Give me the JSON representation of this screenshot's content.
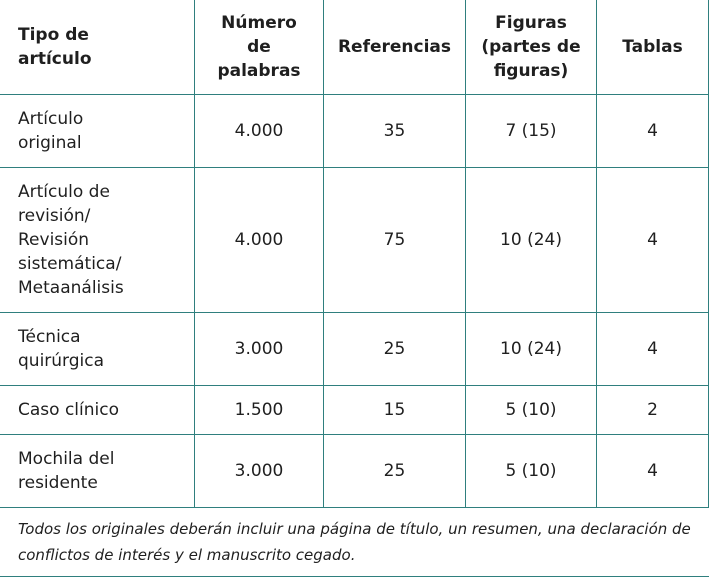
{
  "table": {
    "headers": [
      "Tipo de\nartículo",
      "Número\nde\npalabras",
      "Referencias",
      "Figuras\n(partes de\nfiguras)",
      "Tablas"
    ],
    "rows": [
      [
        "Artículo\noriginal",
        "4.000",
        "35",
        "7 (15)",
        "4"
      ],
      [
        "Artículo de\nrevisión/\nRevisión\nsistemática/\nMetaanálisis",
        "4.000",
        "75",
        "10 (24)",
        "4"
      ],
      [
        "Técnica\nquirúrgica",
        "3.000",
        "25",
        "10 (24)",
        "4"
      ],
      [
        "Caso clínico",
        "1.500",
        "15",
        "5 (10)",
        "2"
      ],
      [
        "Mochila del\nresidente",
        "3.000",
        "25",
        "5 (10)",
        "4"
      ]
    ],
    "note": "Todos los originales deberán incluir una página de título, un resumen, una declaración de conflictos de interés y el manuscrito cegado."
  }
}
